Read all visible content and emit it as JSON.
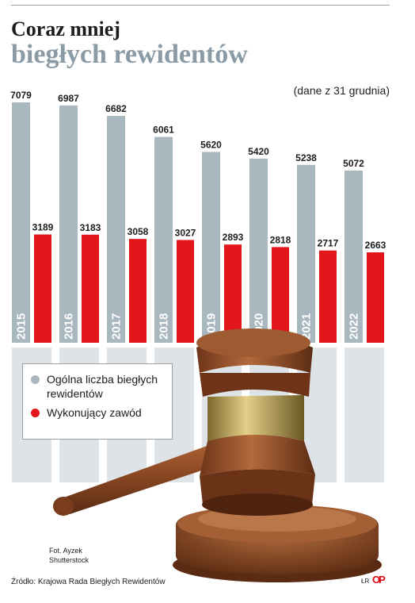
{
  "header": {
    "title_line1": "Coraz mniej",
    "title_line2": "biegłych rewidentów",
    "note": "(dane z 31 grudnia)"
  },
  "colors": {
    "total": "#a9b7bf",
    "practicing": "#e3161b",
    "shadow": "#dde3e6"
  },
  "chart_data": {
    "type": "bar",
    "categories": [
      "2015",
      "2016",
      "2017",
      "2018",
      "2019",
      "2020",
      "2021",
      "2022"
    ],
    "series": [
      {
        "name": "Ogólna liczba biegłych rewidentów",
        "values": [
          7079,
          6987,
          6682,
          6061,
          5620,
          5420,
          5238,
          5072
        ]
      },
      {
        "name": "Wykonujący zawód",
        "values": [
          3189,
          3183,
          3058,
          3027,
          2893,
          2818,
          2717,
          2663
        ]
      }
    ],
    "title": "Coraz mniej biegłych rewidentów",
    "note": "(dane z 31 grudnia)",
    "legend": "bottom-left"
  },
  "legend": {
    "total_label": "Ogólna liczba biegłych rewidentów",
    "practicing_label": "Wykonujący zawód"
  },
  "photo_credit": {
    "line1": "Fot. Ayzek",
    "line2": "Shutterstock"
  },
  "source": {
    "text": "Źródło: Krajowa Rada Biegłych Rewidentów",
    "tag": "ŁR",
    "logo": "OP"
  },
  "illustration": "gavel"
}
